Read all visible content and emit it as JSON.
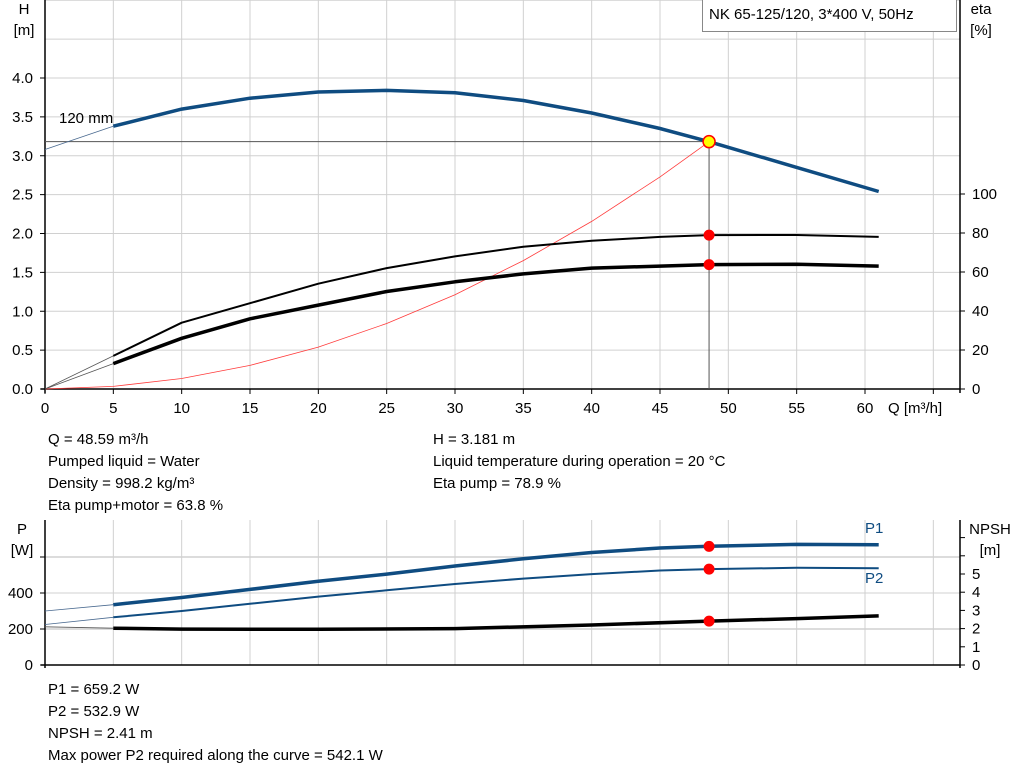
{
  "title": "NK 65-125/120, 3*400 V, 50Hz",
  "colors": {
    "head": "#0f4c81",
    "power": "#0f4c81",
    "eta": "#000000",
    "npsh": "#000000",
    "system": "#ff3b3b",
    "duty_point": "#ff0000",
    "duty_fill": "#ffff00",
    "grid": "#d0d0d0"
  },
  "chart_data": [
    {
      "type": "line",
      "ylabel": [
        "H",
        "[m]"
      ],
      "y2label": [
        "eta",
        "[%]"
      ],
      "xlabel": "Q [m³/h]",
      "xlim": [
        0,
        67
      ],
      "ylim": [
        0,
        5
      ],
      "y2lim": [
        0,
        256
      ],
      "xticks": [
        "0",
        "5",
        "10",
        "15",
        "20",
        "25",
        "30",
        "35",
        "40",
        "45",
        "50",
        "55",
        "60"
      ],
      "yticks": [
        "0.0",
        "0.5",
        "1.0",
        "1.5",
        "2.0",
        "2.5",
        "3.0",
        "3.5",
        "4.0"
      ],
      "y2ticks": [
        "0",
        "20",
        "40",
        "60",
        "80",
        "100"
      ],
      "grid": true,
      "curve_label": "120 mm",
      "duty_point": {
        "Q": 48.59,
        "H": 3.181,
        "eta_pump": 78.9,
        "eta_total": 63.8
      },
      "series": [
        {
          "key": "head",
          "axis": "H",
          "x": [
            0,
            5,
            10,
            15,
            20,
            25,
            30,
            35,
            40,
            45,
            48.59,
            55,
            61
          ],
          "y": [
            3.08,
            3.38,
            3.6,
            3.74,
            3.82,
            3.84,
            3.81,
            3.71,
            3.55,
            3.35,
            3.181,
            2.85,
            2.54
          ]
        },
        {
          "key": "eta_pump",
          "axis": "eta",
          "x": [
            0,
            5,
            10,
            15,
            20,
            25,
            30,
            35,
            40,
            45,
            48.59,
            55,
            61
          ],
          "y": [
            0,
            17,
            34,
            44,
            54,
            62,
            68,
            73,
            76,
            78,
            78.9,
            79,
            78
          ]
        },
        {
          "key": "eta_total",
          "axis": "eta",
          "x": [
            0,
            5,
            10,
            15,
            20,
            25,
            30,
            35,
            40,
            45,
            48.59,
            55,
            61
          ],
          "y": [
            0,
            13,
            26,
            36,
            43,
            50,
            55,
            59,
            62,
            63,
            63.8,
            64,
            63
          ]
        },
        {
          "key": "system",
          "axis": "H",
          "x": [
            0,
            5,
            10,
            15,
            20,
            25,
            30,
            35,
            40,
            45,
            48.59
          ],
          "y": [
            0,
            0.034,
            0.135,
            0.303,
            0.539,
            0.842,
            1.213,
            1.651,
            2.156,
            2.728,
            3.181
          ]
        }
      ]
    },
    {
      "type": "line",
      "ylabel": [
        "P",
        "[W]"
      ],
      "y2label": [
        "NPSH",
        "[m]"
      ],
      "xlim": [
        0,
        67
      ],
      "ylim": [
        0,
        805
      ],
      "y2lim": [
        0,
        8
      ],
      "yticks": [
        "0",
        "200",
        "400"
      ],
      "y2ticks": [
        "0",
        "1",
        "2",
        "3",
        "4",
        "5"
      ],
      "grid": true,
      "series": [
        {
          "key": "P1",
          "name": "P1",
          "axis": "P",
          "x": [
            0,
            5,
            10,
            15,
            20,
            25,
            30,
            35,
            40,
            45,
            48.59,
            55,
            61
          ],
          "y": [
            300,
            335,
            375,
            420,
            465,
            505,
            550,
            590,
            625,
            650,
            659.2,
            670,
            668
          ]
        },
        {
          "key": "P2",
          "name": "P2",
          "axis": "P",
          "x": [
            0,
            5,
            10,
            15,
            20,
            25,
            30,
            35,
            40,
            45,
            48.59,
            55,
            61
          ],
          "y": [
            225,
            265,
            300,
            340,
            380,
            415,
            450,
            480,
            505,
            525,
            532.9,
            540,
            538
          ]
        },
        {
          "key": "NPSH",
          "axis": "NPSH",
          "x": [
            0,
            5,
            10,
            20,
            30,
            40,
            48.59,
            55,
            61
          ],
          "y": [
            2.1,
            2.02,
            1.97,
            1.96,
            2.0,
            2.2,
            2.41,
            2.55,
            2.7
          ]
        }
      ]
    }
  ],
  "info_top_left": [
    "Q = 48.59 m³/h",
    "Pumped liquid = Water",
    "Density = 998.2 kg/m³",
    "Eta pump+motor = 63.8 %"
  ],
  "info_top_right": [
    "H = 3.181 m",
    "Liquid temperature during operation = 20 °C",
    "Eta pump = 78.9 %"
  ],
  "info_bottom": [
    "P1 = 659.2 W",
    "P2 = 532.9 W",
    "NPSH = 2.41 m",
    "Max power P2 required along the curve = 542.1 W"
  ]
}
